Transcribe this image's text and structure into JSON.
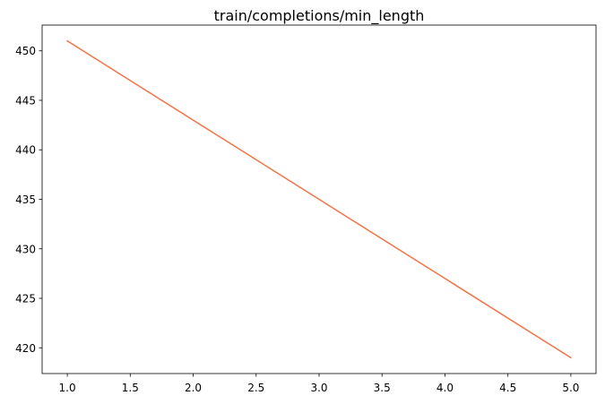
{
  "chart_data": {
    "type": "line",
    "title": "train/completions/min_length",
    "xlabel": "",
    "ylabel": "",
    "x": [
      1,
      2,
      3,
      4,
      5
    ],
    "series": [
      {
        "values": [
          451,
          443,
          435,
          427,
          419
        ],
        "color": "#f47345"
      }
    ],
    "xlim": [
      0.8,
      5.2
    ],
    "ylim": [
      417.4,
      452.6
    ],
    "xticks": [
      1.0,
      1.5,
      2.0,
      2.5,
      3.0,
      3.5,
      4.0,
      4.5,
      5.0
    ],
    "xtick_labels": [
      "1.0",
      "1.5",
      "2.0",
      "2.5",
      "3.0",
      "3.5",
      "4.0",
      "4.5",
      "5.0"
    ],
    "yticks": [
      420,
      425,
      430,
      435,
      440,
      445,
      450
    ],
    "ytick_labels": [
      "420",
      "425",
      "430",
      "435",
      "440",
      "445",
      "450"
    ],
    "grid": false,
    "legend": "none"
  }
}
